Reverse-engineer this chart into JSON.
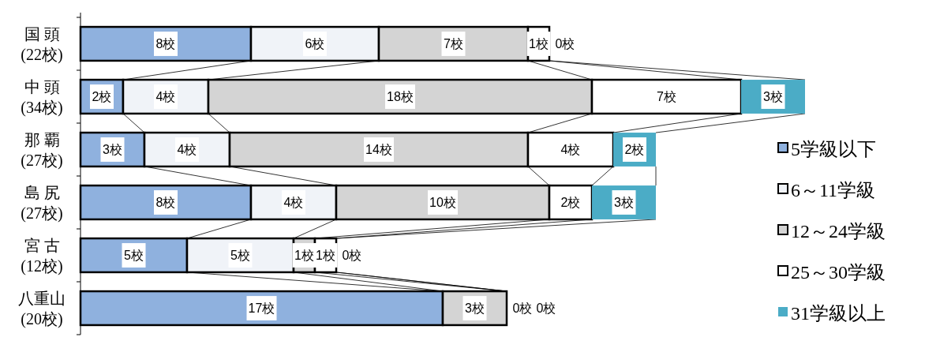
{
  "chart_data": {
    "type": "bar",
    "orientation": "horizontal",
    "stacked": true,
    "legend": "right",
    "tick_labels": "y",
    "categories": [
      "国 頭\n(22校)",
      "中 頭\n(34校)",
      "那 覇\n(27校)",
      "島 尻\n(27校)",
      "宮 古\n(12校)",
      "八重山\n(20校)"
    ],
    "series": [
      {
        "name": "5学級以下",
        "color": "#8fb1de",
        "values": [
          8,
          2,
          3,
          8,
          5,
          17
        ],
        "value_labels": [
          "8校",
          "2校",
          "3校",
          "8校",
          "5校",
          "17校"
        ]
      },
      {
        "name": "6～11学級",
        "color": "#f0f3f8",
        "values": [
          6,
          4,
          4,
          4,
          5,
          0
        ],
        "value_labels": [
          "6校",
          "4校",
          "4校",
          "4校",
          "5校",
          null
        ]
      },
      {
        "name": "12～24学級",
        "color": "#d4d4d4",
        "values": [
          7,
          18,
          14,
          10,
          1,
          3
        ],
        "value_labels": [
          "7校",
          "18校",
          "14校",
          "10校",
          "1校",
          "3校"
        ]
      },
      {
        "name": "25～30学級",
        "color": "#ffffff",
        "values": [
          1,
          7,
          4,
          2,
          1,
          0
        ],
        "value_labels": [
          "1校",
          "7校",
          "4校",
          "2校",
          "1校",
          "0校"
        ]
      },
      {
        "name": "31学級以上",
        "color": "#4bacc6",
        "values": [
          0,
          3,
          2,
          3,
          0,
          0
        ],
        "value_labels": [
          "0校",
          "3校",
          "2校",
          "3校",
          "0校",
          "0校"
        ]
      }
    ]
  }
}
